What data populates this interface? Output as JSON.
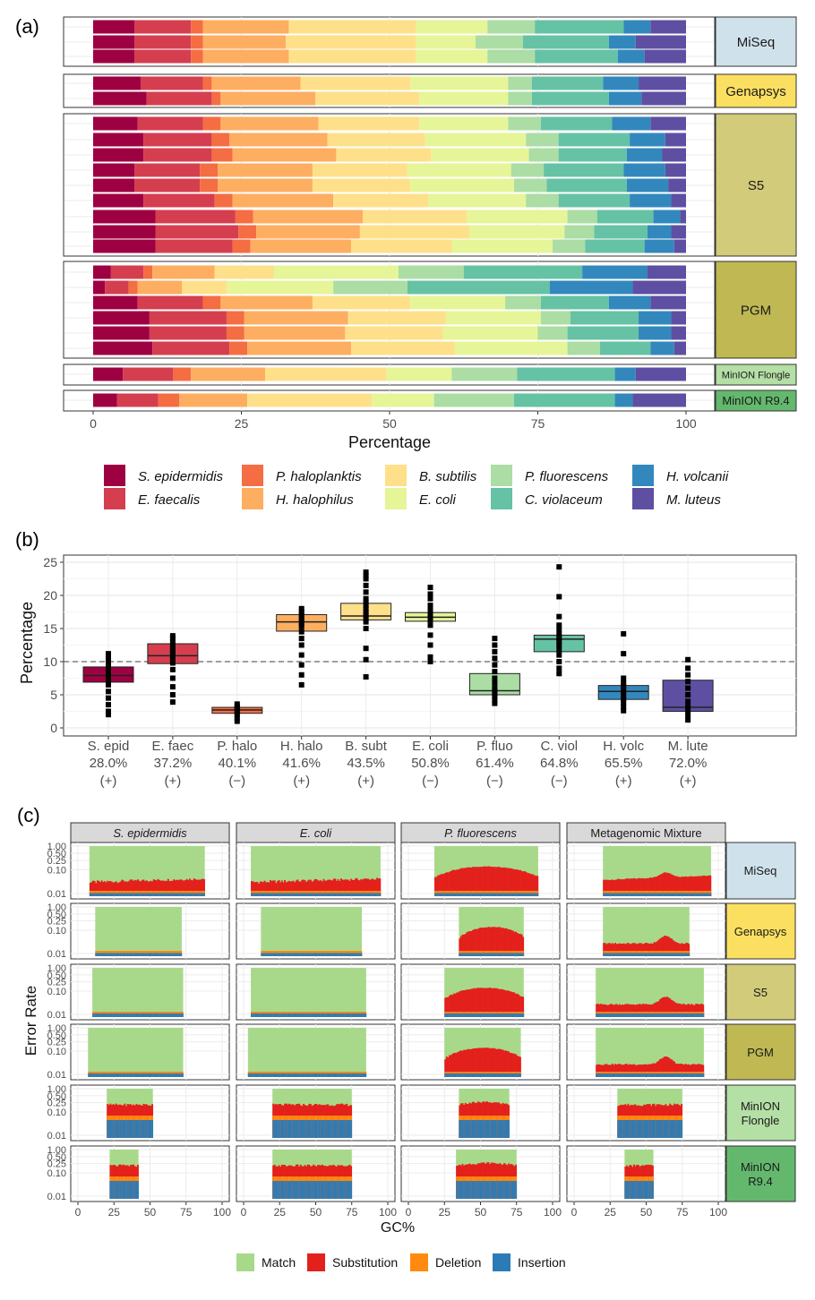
{
  "figure": {
    "label_a": "(a)",
    "label_b": "(b)",
    "label_c": "(c)"
  },
  "colors": {
    "S. epidermidis": "#9e0142",
    "E. faecalis": "#d53e4f",
    "P. haloplanktis": "#f46d43",
    "H. halophilus": "#fdae61",
    "B. subtilis": "#fee08b",
    "E. coli": "#e6f598",
    "P. fluorescens": "#abdda4",
    "C. violaceum": "#66c2a5",
    "H. volcanii": "#3288bd",
    "M. luteus": "#5e4fa2",
    "platform_MiSeq": "#cfe2ec",
    "platform_Genapsys": "#fbdf60",
    "platform_S5": "#d2cb79",
    "platform_PGM": "#bfb853",
    "platform_MinION Flongle": "#b4dfa5",
    "platform_MinION R9.4": "#64b86e",
    "match": "#a8d98a",
    "substitution": "#e4201c",
    "deletion": "#ff8a10",
    "insertion": "#2c7bb6"
  },
  "chart_data": [
    {
      "type": "bar",
      "orientation": "horizontal-stacked",
      "panel": "(a)",
      "xlabel": "Percentage",
      "xlim": [
        0,
        100
      ],
      "xticks": [
        "0",
        "25",
        "50",
        "75",
        "100"
      ],
      "legend": {
        "placement": "bottom",
        "items": [
          "S. epidermidis",
          "P. haloplanktis",
          "B. subtilis",
          "P. fluorescens",
          "H. volcanii",
          "E. faecalis",
          "H. halophilus",
          "E. coli",
          "C. violaceum",
          "M. luteus"
        ]
      },
      "series_names": [
        "S. epidermidis",
        "E. faecalis",
        "P. haloplanktis",
        "H. halophilus",
        "B. subtilis",
        "E. coli",
        "P. fluorescens",
        "C. violaceum",
        "H. volcanii",
        "M. luteus"
      ],
      "groups": [
        {
          "platform": "MiSeq",
          "rows": [
            [
              7,
              9.5,
              2,
              14.5,
              21.5,
              12,
              8,
              15,
              4.5,
              6
            ],
            [
              7,
              9.5,
              2,
              14,
              22,
              10,
              8,
              14.5,
              4.5,
              8.5
            ],
            [
              7,
              9.5,
              2,
              14.5,
              21.5,
              12,
              8,
              14,
              4.5,
              7
            ]
          ]
        },
        {
          "platform": "Genapsys",
          "rows": [
            [
              8,
              10.5,
              1.5,
              15,
              18.5,
              16.5,
              4,
              12,
              6,
              8
            ],
            [
              9,
              11,
              1.5,
              16,
              17.5,
              15,
              4,
              13,
              5.5,
              7.5
            ]
          ]
        },
        {
          "platform": "S5",
          "rows": [
            [
              7.5,
              11,
              3,
              16.5,
              17,
              15,
              5.5,
              12,
              6.5,
              6
            ],
            [
              8.5,
              11.5,
              3,
              16.5,
              16.5,
              17,
              5.5,
              12,
              6,
              3.5
            ],
            [
              8.5,
              11.5,
              3.5,
              17.5,
              16,
              16.5,
              5,
              11.5,
              6,
              4
            ],
            [
              7,
              11,
              3,
              16,
              16,
              17.5,
              5.5,
              13.5,
              7,
              3.5
            ],
            [
              7,
              11,
              3,
              16,
              16.5,
              17.5,
              5.5,
              13.5,
              7,
              3
            ],
            [
              8.5,
              12,
              3,
              17,
              16,
              16.5,
              5.5,
              12,
              7,
              2.5
            ],
            [
              10.5,
              13.5,
              3,
              18.5,
              17.5,
              17,
              5,
              9.5,
              4.5,
              1
            ],
            [
              10.5,
              14,
              3,
              17.5,
              18.5,
              16,
              5,
              9,
              4,
              2.5
            ],
            [
              10.5,
              13,
              3,
              17,
              17,
              17,
              5.5,
              10,
              5,
              2
            ]
          ]
        },
        {
          "platform": "PGM",
          "rows": [
            [
              3,
              5.5,
              1.5,
              10.5,
              10,
              21,
              11,
              20,
              11,
              6.5
            ],
            [
              2,
              4,
              1.5,
              7.5,
              7.5,
              18,
              12.5,
              24,
              14,
              9
            ],
            [
              7.5,
              11,
              3,
              15.5,
              16.5,
              16,
              6,
              11.5,
              7,
              6
            ],
            [
              9.5,
              13,
              3,
              17.5,
              16.5,
              16,
              5,
              11.5,
              5.5,
              2.5
            ],
            [
              9.5,
              13,
              3,
              17,
              16.5,
              16,
              5,
              12,
              5.5,
              2.5
            ],
            [
              10,
              13,
              3,
              17.5,
              17.5,
              19,
              5.5,
              8.5,
              4,
              2
            ]
          ]
        },
        {
          "platform": "MinION Flongle",
          "rows": [
            [
              5,
              8.5,
              3,
              12.5,
              20.5,
              11,
              11,
              16.5,
              3.5,
              8.5
            ]
          ]
        },
        {
          "platform": "MinION R9.4",
          "rows": [
            [
              4,
              7,
              3.5,
              11.5,
              21,
              10.5,
              13.5,
              17,
              3,
              9
            ]
          ]
        }
      ]
    },
    {
      "type": "box",
      "panel": "(b)",
      "ylabel": "Percentage",
      "ylim": [
        0,
        25
      ],
      "yticks": [
        "0",
        "5",
        "10",
        "15",
        "20",
        "25"
      ],
      "reference_line": 10,
      "categories": [
        "S. epid",
        "E. faec",
        "P. halo",
        "H. halo",
        "B. subt",
        "E. coli",
        "P. fluo",
        "C. viol",
        "H. volc",
        "M. lute"
      ],
      "gc_content": [
        "28.0%",
        "37.2%",
        "40.1%",
        "41.6%",
        "43.5%",
        "50.8%",
        "61.4%",
        "64.8%",
        "65.5%",
        "72.0%"
      ],
      "gram_stain": [
        "(+)",
        "(+)",
        "(−)",
        "(+)",
        "(+)",
        "(−)",
        "(−)",
        "(−)",
        "(+)",
        "(+)"
      ],
      "boxes": [
        {
          "q1": 6.9,
          "median": 7.9,
          "q3": 9.2
        },
        {
          "q1": 9.7,
          "median": 10.9,
          "q3": 12.7
        },
        {
          "q1": 2.2,
          "median": 2.7,
          "q3": 3.1
        },
        {
          "q1": 14.6,
          "median": 16.0,
          "q3": 17.1
        },
        {
          "q1": 16.3,
          "median": 16.9,
          "q3": 18.8
        },
        {
          "q1": 16.1,
          "median": 16.7,
          "q3": 17.4
        },
        {
          "q1": 5.0,
          "median": 5.6,
          "q3": 8.2
        },
        {
          "q1": 11.5,
          "median": 13.4,
          "q3": 14.0
        },
        {
          "q1": 4.3,
          "median": 5.5,
          "q3": 6.4
        },
        {
          "q1": 2.5,
          "median": 3.1,
          "q3": 7.2
        }
      ],
      "points": [
        [
          2.0,
          2.5,
          3.5,
          4.5,
          5.5,
          6.5,
          7.2,
          7.5,
          7.8,
          8.0,
          8.3,
          8.6,
          9.0,
          9.5,
          10.2,
          10.8,
          11.2
        ],
        [
          3.9,
          5.0,
          6.2,
          7.5,
          8.8,
          9.8,
          10.3,
          10.8,
          11.2,
          11.6,
          12.0,
          12.5,
          13.0,
          13.5,
          13.9
        ],
        [
          1.0,
          1.5,
          2.0,
          2.4,
          2.7,
          3.0,
          3.3,
          3.6
        ],
        [
          6.5,
          8.0,
          9.5,
          11.0,
          12.5,
          13.5,
          14.5,
          15.3,
          15.8,
          16.2,
          16.6,
          17.0,
          17.5,
          18.0
        ],
        [
          7.7,
          10.3,
          12.0,
          15.0,
          16.0,
          16.5,
          17.0,
          17.5,
          18.0,
          18.5,
          19.0,
          19.5,
          20.5,
          21.5,
          22.5,
          23.0,
          23.5
        ],
        [
          10.0,
          10.7,
          12.5,
          14.0,
          15.5,
          16.3,
          16.7,
          17.0,
          17.5,
          18.0,
          18.5,
          19.5,
          20.2,
          21.2
        ],
        [
          3.7,
          4.2,
          4.8,
          5.2,
          5.6,
          6.0,
          6.8,
          7.5,
          8.5,
          9.5,
          10.5,
          11.5,
          12.5,
          13.5
        ],
        [
          8.2,
          9.0,
          10.0,
          11.0,
          11.8,
          12.5,
          13.0,
          13.5,
          14.0,
          14.8,
          15.5,
          16.8,
          19.8,
          24.3
        ],
        [
          2.6,
          3.2,
          3.8,
          4.3,
          4.8,
          5.3,
          5.8,
          6.3,
          6.8,
          7.5,
          11.2,
          14.2
        ],
        [
          1.2,
          1.8,
          2.5,
          3.2,
          4.0,
          5.0,
          6.0,
          7.0,
          8.0,
          9.0,
          10.3
        ]
      ]
    },
    {
      "type": "area",
      "panel": "(c)",
      "xlabel": "GC%",
      "ylabel": "Error Rate",
      "xlim": [
        0,
        100
      ],
      "xticks": [
        "0",
        "25",
        "50",
        "75",
        "100"
      ],
      "yticks": [
        "1.00",
        "0.50",
        "0.25",
        "0.10",
        "0.01"
      ],
      "yscale": "log",
      "columns": [
        "S. epidermidis",
        "E. coli",
        "P. fluorescens",
        "Metagenomic Mixture"
      ],
      "rows": [
        "MiSeq",
        "Genapsys",
        "S5",
        "PGM",
        "MinION Flongle",
        "MinION R9.4"
      ],
      "legend": {
        "placement": "bottom",
        "items": [
          "Match",
          "Substitution",
          "Deletion",
          "Insertion"
        ]
      },
      "gc_ranges": {
        "MiSeq": [
          [
            8,
            88
          ],
          [
            5,
            95
          ],
          [
            18,
            90
          ],
          [
            20,
            95
          ]
        ],
        "Genapsys": [
          [
            12,
            72
          ],
          [
            12,
            82
          ],
          [
            35,
            80
          ],
          [
            20,
            80
          ]
        ],
        "S5": [
          [
            10,
            73
          ],
          [
            5,
            85
          ],
          [
            25,
            80
          ],
          [
            15,
            90
          ]
        ],
        "PGM": [
          [
            7,
            73
          ],
          [
            3,
            85
          ],
          [
            25,
            78
          ],
          [
            15,
            90
          ]
        ],
        "MinION Flongle": [
          [
            20,
            52
          ],
          [
            20,
            75
          ],
          [
            35,
            70
          ],
          [
            30,
            75
          ]
        ],
        "MinION R9.4": [
          [
            22,
            42
          ],
          [
            20,
            75
          ],
          [
            33,
            75
          ],
          [
            35,
            55
          ]
        ]
      }
    }
  ]
}
